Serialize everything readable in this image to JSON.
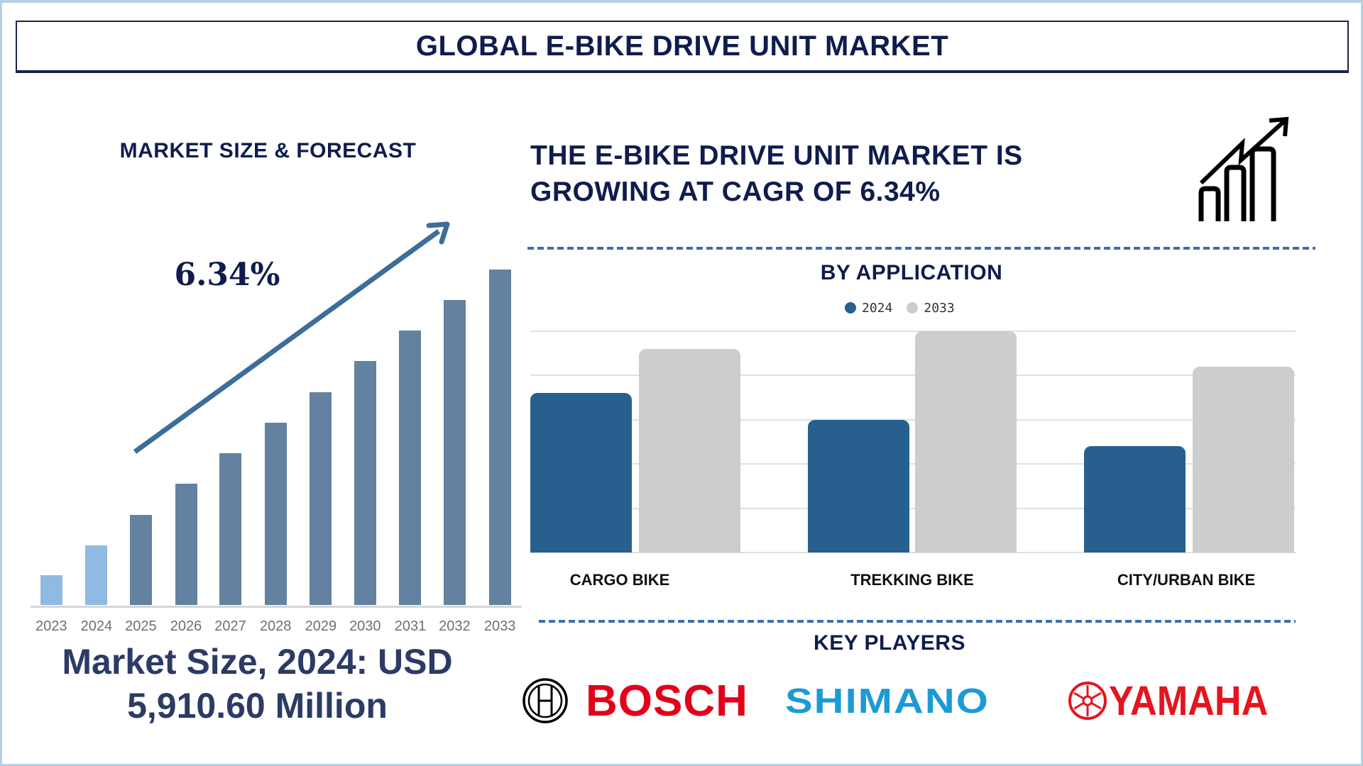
{
  "header": {
    "title": "GLOBAL E-BIKE DRIVE UNIT MARKET"
  },
  "left_panel": {
    "heading": "MARKET SIZE & FORECAST",
    "cagr_label": "6.34%",
    "market_size_line1": "Market Size, 2024: USD",
    "market_size_line2": "5,910.60 Million"
  },
  "right_panel": {
    "heading_line1": "THE E-BIKE DRIVE UNIT MARKET IS",
    "heading_line2": "GROWING AT CAGR OF 6.34%",
    "icon": "growth-chart-icon",
    "application_heading": "BY APPLICATION",
    "key_players_heading": "KEY PLAYERS",
    "key_players": [
      "BOSCH",
      "SHIMANO",
      "YAMAHA"
    ]
  },
  "colors": {
    "navy": "#0f1c4d",
    "bar_historic": "#8fbbe3",
    "bar_forecast": "#62829f",
    "series_2024": "#27608f",
    "series_2033": "#cdcdcd",
    "arrow": "#3d6d99",
    "bosch": "#e2001a",
    "shimano": "#1c9ad6",
    "yamaha": "#e4151f"
  },
  "chart_data": [
    {
      "type": "bar",
      "title": "MARKET SIZE & FORECAST",
      "categories": [
        "2023",
        "2024",
        "2025",
        "2026",
        "2027",
        "2028",
        "2029",
        "2030",
        "2031",
        "2032",
        "2033"
      ],
      "values": [
        34,
        69,
        104,
        140,
        175,
        210,
        245,
        281,
        316,
        351,
        386
      ],
      "value_note": "relative bar heights (px, no axis shown)",
      "historic_years": [
        "2023",
        "2024"
      ],
      "annotation": "6.34%",
      "xlabel": "",
      "ylabel": "",
      "grid": false
    },
    {
      "type": "bar",
      "title": "BY APPLICATION",
      "categories": [
        "CARGO BIKE",
        "TREKKING BIKE",
        "CITY/URBAN BIKE"
      ],
      "series": [
        {
          "name": "2024",
          "values": [
            3.6,
            3.0,
            2.4
          ]
        },
        {
          "name": "2033",
          "values": [
            4.6,
            5.0,
            4.2
          ]
        }
      ],
      "value_note": "relative values in gridline units (no axis labels shown)",
      "ylim": [
        0,
        5
      ],
      "grid": true,
      "legend_position": "top"
    }
  ]
}
